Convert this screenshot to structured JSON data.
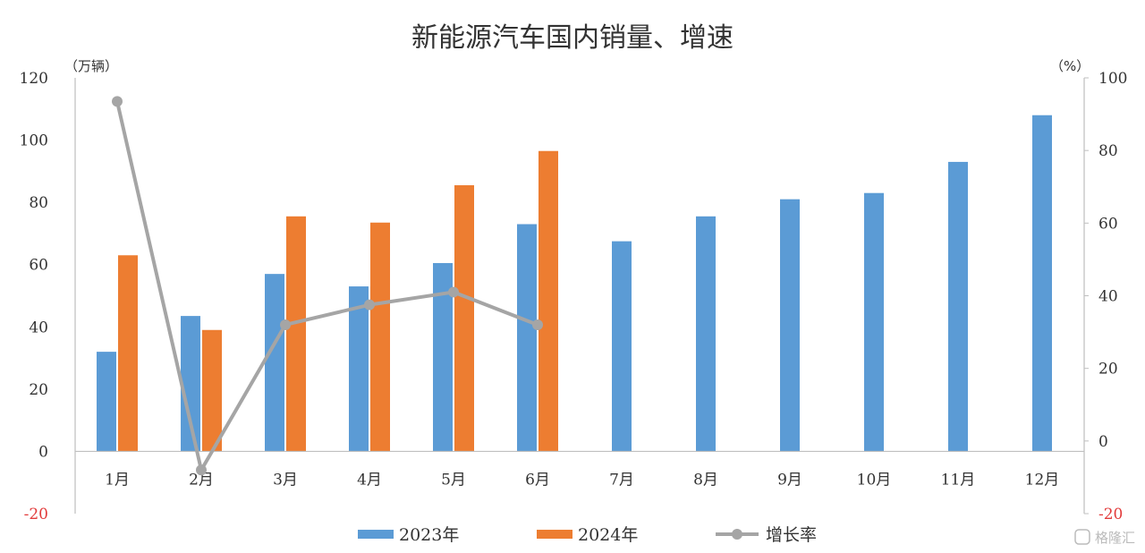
{
  "chart_data": {
    "type": "bar",
    "title": "新能源汽车国内销量、增速",
    "left_unit": "（万辆）",
    "right_unit": "（%）",
    "categories": [
      "1月",
      "2月",
      "3月",
      "4月",
      "5月",
      "6月",
      "7月",
      "8月",
      "9月",
      "10月",
      "11月",
      "12月"
    ],
    "ylim": [
      -20,
      120
    ],
    "yticks": [
      -20,
      0,
      20,
      40,
      60,
      80,
      100,
      120
    ],
    "y2lim": [
      -20,
      100
    ],
    "y2ticks": [
      -20,
      0,
      20,
      40,
      60,
      80,
      100
    ],
    "series": [
      {
        "name": "2023年",
        "kind": "bar",
        "axis": "left",
        "color": "#5b9bd5",
        "values": [
          32,
          43.5,
          57,
          53,
          60.5,
          73,
          67.5,
          75.5,
          81,
          83,
          93,
          108
        ]
      },
      {
        "name": "2024年",
        "kind": "bar",
        "axis": "left",
        "color": "#ed7d31",
        "values": [
          63,
          39,
          75.5,
          73.5,
          85.5,
          96.5,
          null,
          null,
          null,
          null,
          null,
          null
        ]
      },
      {
        "name": "增长率",
        "kind": "line",
        "axis": "right",
        "color": "#a5a5a5",
        "values": [
          93.5,
          -8,
          32,
          37.5,
          41,
          32,
          null,
          null,
          null,
          null,
          null,
          null
        ]
      }
    ],
    "negative_tick_color": "#e23b3b",
    "legend_position": "bottom",
    "grid": false
  },
  "watermark": "格隆汇"
}
